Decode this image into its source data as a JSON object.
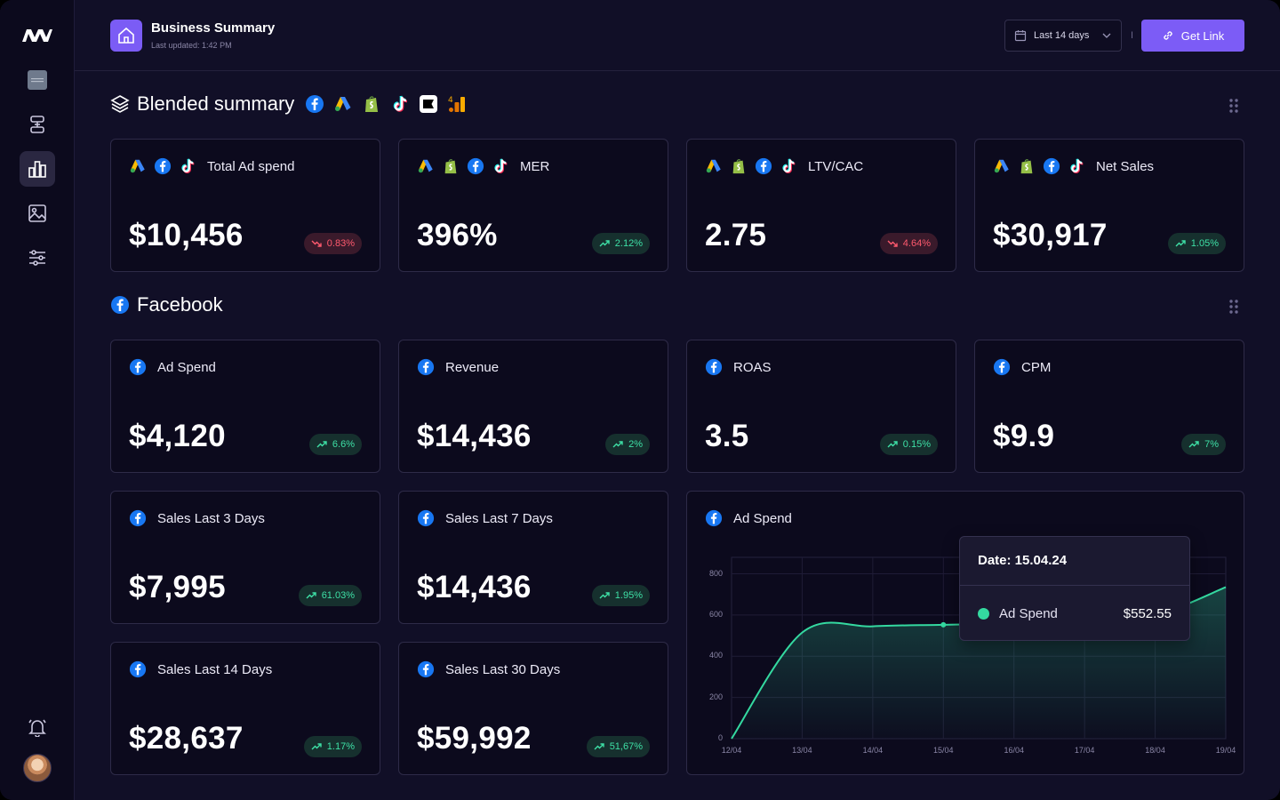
{
  "header": {
    "title": "Business Summary",
    "subtitle": "Last updated: 1:42 PM",
    "date_range": "Last 14 days",
    "separator": "I",
    "get_link_label": "Get Link"
  },
  "sidebar": {
    "items": [
      {
        "icon": "workspace-icon",
        "active": false
      },
      {
        "icon": "integrations-icon",
        "active": false
      },
      {
        "icon": "bar-chart-icon",
        "active": true
      },
      {
        "icon": "image-icon",
        "active": false
      },
      {
        "icon": "settings-sliders-icon",
        "active": false
      }
    ],
    "bottom": [
      "bell-icon",
      "avatar"
    ]
  },
  "blended": {
    "title": "Blended summary",
    "sources": [
      "facebook-icon",
      "google-ads-icon",
      "shopify-icon",
      "tiktok-icon",
      "klaviyo-icon",
      "google-analytics-icon"
    ],
    "cards": [
      {
        "label": "Total Ad spend",
        "value": "$10,456",
        "delta": "0.83%",
        "direction": "down",
        "icons": [
          "google-ads-icon",
          "facebook-icon",
          "tiktok-icon"
        ]
      },
      {
        "label": "MER",
        "value": "396%",
        "delta": "2.12%",
        "direction": "up",
        "icons": [
          "google-ads-icon",
          "shopify-icon",
          "facebook-icon",
          "tiktok-icon"
        ]
      },
      {
        "label": "LTV/CAC",
        "value": "2.75",
        "delta": "4.64%",
        "direction": "down",
        "icons": [
          "google-ads-icon",
          "shopify-icon",
          "facebook-icon",
          "tiktok-icon"
        ]
      },
      {
        "label": "Net Sales",
        "value": "$30,917",
        "delta": "1.05%",
        "direction": "up",
        "icons": [
          "google-ads-icon",
          "shopify-icon",
          "facebook-icon",
          "tiktok-icon"
        ]
      }
    ]
  },
  "facebook": {
    "title": "Facebook",
    "cards": [
      {
        "label": "Ad Spend",
        "value": "$4,120",
        "delta": "6.6%",
        "direction": "up"
      },
      {
        "label": "Revenue",
        "value": "$14,436",
        "delta": "2%",
        "direction": "up"
      },
      {
        "label": "ROAS",
        "value": "3.5",
        "delta": "0.15%",
        "direction": "up"
      },
      {
        "label": "CPM",
        "value": "$9.9",
        "delta": "7%",
        "direction": "up"
      },
      {
        "label": "Sales Last 3 Days",
        "value": "$7,995",
        "delta": "61.03%",
        "direction": "up"
      },
      {
        "label": "Sales Last 7 Days",
        "value": "$14,436",
        "delta": "1.95%",
        "direction": "up"
      },
      {
        "label": "Sales Last 14 Days",
        "value": "$28,637",
        "delta": "1.17%",
        "direction": "up"
      },
      {
        "label": "Sales Last 30 Days",
        "value": "$59,992",
        "delta": "51,67%",
        "direction": "up"
      }
    ],
    "chart_title": "Ad Spend"
  },
  "chart_data": {
    "type": "area",
    "title": "Ad Spend",
    "x": [
      "12/04",
      "13/04",
      "14/04",
      "15/04",
      "16/04",
      "17/04",
      "18/04",
      "19/04"
    ],
    "y_ticks": [
      "0",
      "200",
      "400",
      "600",
      "800"
    ],
    "ylim": [
      0,
      880
    ],
    "series": [
      {
        "name": "Ad Spend",
        "color": "#34d9a0",
        "values": [
          0,
          515,
          545,
          552.55,
          560,
          575,
          600,
          735
        ]
      }
    ],
    "grid": true,
    "tooltip": {
      "title": "Date: 15.04.24",
      "series": "Ad Spend",
      "value": "$552.55",
      "index": 3
    }
  },
  "colors": {
    "background": "#110f27",
    "card": "#0c0a1d",
    "accent": "#7c5cf6",
    "positive": "#3ee0a6",
    "negative": "#ff5a6e",
    "line": "#34d9a0"
  }
}
